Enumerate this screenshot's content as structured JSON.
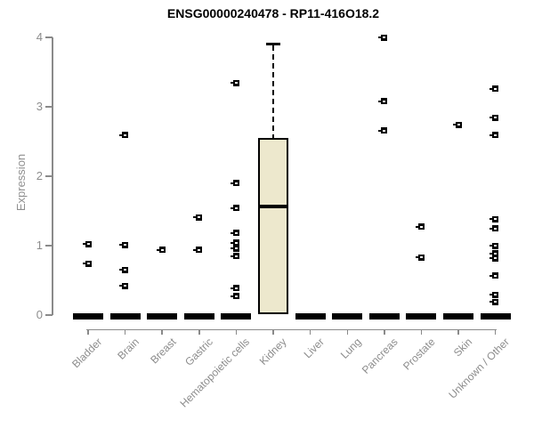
{
  "title": "ENSG00000240478 - RP11-416O18.2",
  "chart_data": {
    "type": "boxplot",
    "title": "ENSG00000240478 - RP11-416O18.2",
    "xlabel": "",
    "ylabel": "Expression",
    "ylim": [
      0,
      4
    ],
    "yticks": [
      0,
      1,
      2,
      3,
      4
    ],
    "grid": false,
    "legend": "none",
    "categories": [
      "Bladder",
      "Brain",
      "Breast",
      "Gastric",
      "Hematopoietic cells",
      "Kidney",
      "Liver",
      "Lung",
      "Pancreas",
      "Prostate",
      "Skin",
      "Unknown / Other"
    ],
    "series": [
      {
        "category": "Bladder",
        "q1": 0,
        "median": 0,
        "q3": 0,
        "whisker_low": 0,
        "whisker_high": 0,
        "outliers": [
          1.02,
          0.74
        ]
      },
      {
        "category": "Brain",
        "q1": 0,
        "median": 0,
        "q3": 0,
        "whisker_low": 0,
        "whisker_high": 0,
        "outliers": [
          2.59,
          1.01,
          0.65,
          0.42
        ]
      },
      {
        "category": "Breast",
        "q1": 0,
        "median": 0,
        "q3": 0,
        "whisker_low": 0,
        "whisker_high": 0,
        "outliers": [
          0.94
        ]
      },
      {
        "category": "Gastric",
        "q1": 0,
        "median": 0,
        "q3": 0,
        "whisker_low": 0,
        "whisker_high": 0,
        "outliers": [
          1.41,
          0.94
        ]
      },
      {
        "category": "Hematopoietic cells",
        "q1": 0,
        "median": 0,
        "q3": 0,
        "whisker_low": 0,
        "whisker_high": 0,
        "outliers": [
          3.34,
          1.9,
          1.54,
          1.18,
          1.04,
          0.96,
          0.85,
          0.39,
          0.27
        ]
      },
      {
        "category": "Kidney",
        "q1": 0.01,
        "median": 1.56,
        "q3": 2.55,
        "whisker_low": 0.01,
        "whisker_high": 3.91,
        "outliers": []
      },
      {
        "category": "Liver",
        "q1": 0,
        "median": 0,
        "q3": 0,
        "whisker_low": 0,
        "whisker_high": 0,
        "outliers": []
      },
      {
        "category": "Lung",
        "q1": 0,
        "median": 0,
        "q3": 0,
        "whisker_low": 0,
        "whisker_high": 0,
        "outliers": []
      },
      {
        "category": "Pancreas",
        "q1": 0,
        "median": 0,
        "q3": 0,
        "whisker_low": 0,
        "whisker_high": 0,
        "outliers": [
          4.0,
          3.08,
          2.66
        ]
      },
      {
        "category": "Prostate",
        "q1": 0,
        "median": 0,
        "q3": 0,
        "whisker_low": 0,
        "whisker_high": 0,
        "outliers": [
          1.27,
          0.83
        ]
      },
      {
        "category": "Skin",
        "q1": 0,
        "median": 0,
        "q3": 0,
        "whisker_low": 0,
        "whisker_high": 0,
        "outliers": [
          2.74
        ]
      },
      {
        "category": "Unknown / Other",
        "q1": 0,
        "median": 0,
        "q3": 0,
        "whisker_low": 0,
        "whisker_high": 0,
        "outliers": [
          3.26,
          2.84,
          2.59,
          1.38,
          1.25,
          1.0,
          0.89,
          0.82,
          0.57,
          0.29,
          0.19
        ]
      }
    ],
    "colors": {
      "box_fill": "#EDE8CD",
      "box_border": "#000000",
      "median": "#000000",
      "outlier": "#000000",
      "axis": "#8A8A8A",
      "tick_label": "#8C8C8C",
      "title": "#000000"
    }
  }
}
